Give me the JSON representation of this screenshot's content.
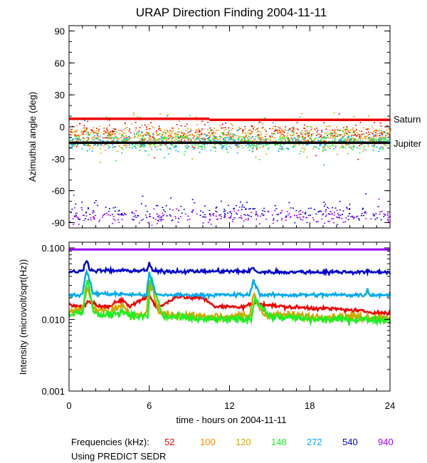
{
  "chart_data": [
    {
      "type": "scatter",
      "title": "URAP Direction Finding  2004-11-11",
      "ylabel": "Azimuthal angle (deg)",
      "xlim": [
        0,
        24
      ],
      "ylim": [
        -95,
        95
      ],
      "yticks": [
        90,
        60,
        30,
        0,
        -30,
        -60,
        -90
      ],
      "reference_lines": [
        {
          "name": "Saturn",
          "color": "#ee0000",
          "segments": [
            {
              "x": [
                0,
                10.5
              ],
              "y": 7.5
            },
            {
              "x": [
                10.5,
                24
              ],
              "y": 6.5
            }
          ]
        },
        {
          "name": "Jupiter",
          "color": "#000000",
          "segments": [
            {
              "x": [
                0,
                24
              ],
              "y": -15
            }
          ]
        }
      ],
      "series": [
        {
          "name": "52 kHz",
          "color": "#ee0000",
          "center": -6,
          "spread": 9
        },
        {
          "name": "100 kHz",
          "color": "#ff8c00",
          "center": -8,
          "spread": 10
        },
        {
          "name": "120 kHz",
          "color": "#ccaa00",
          "center": -10,
          "spread": 9
        },
        {
          "name": "148 kHz",
          "color": "#22ee22",
          "center": -13,
          "spread": 8
        },
        {
          "name": "272 kHz",
          "color": "#00aaee",
          "center": -14,
          "spread": 8
        },
        {
          "name": "540 kHz",
          "color": "#0000cc",
          "center": -80,
          "spread": 8
        },
        {
          "name": "940 kHz",
          "color": "#9900ff",
          "center": -84,
          "spread": 6
        }
      ]
    },
    {
      "type": "line",
      "ylabel": "Intensity (microvolt/sqrt(Hz))",
      "xlabel": "time - hours on 2004-11-11",
      "xlim": [
        0,
        24
      ],
      "xticks": [
        0,
        6,
        12,
        18,
        24
      ],
      "ylim": [
        0.001,
        0.12
      ],
      "yscale": "log",
      "ytick_labels": [
        "0.100",
        "0.010",
        "0.001"
      ],
      "yticks": [
        0.1,
        0.01,
        0.001
      ],
      "series": [
        {
          "name": "940 kHz",
          "color": "#9900ff",
          "values": [
            [
              0,
              0.095
            ],
            [
              24,
              0.095
            ]
          ]
        },
        {
          "name": "540 kHz",
          "color": "#0000cc",
          "values": [
            [
              0,
              0.046
            ],
            [
              1,
              0.047
            ],
            [
              1.3,
              0.07
            ],
            [
              1.6,
              0.048
            ],
            [
              5.8,
              0.048
            ],
            [
              6.0,
              0.06
            ],
            [
              6.3,
              0.047
            ],
            [
              13.5,
              0.047
            ],
            [
              13.7,
              0.053
            ],
            [
              14,
              0.046
            ],
            [
              24,
              0.046
            ]
          ]
        },
        {
          "name": "272 kHz",
          "color": "#00aaee",
          "values": [
            [
              0,
              0.022
            ],
            [
              1.0,
              0.022
            ],
            [
              1.3,
              0.05
            ],
            [
              1.8,
              0.023
            ],
            [
              5.8,
              0.022
            ],
            [
              6.0,
              0.045
            ],
            [
              6.5,
              0.022
            ],
            [
              13.5,
              0.022
            ],
            [
              13.8,
              0.035
            ],
            [
              14.3,
              0.022
            ],
            [
              22.2,
              0.022
            ],
            [
              22.3,
              0.027
            ],
            [
              22.5,
              0.022
            ],
            [
              24,
              0.022
            ]
          ]
        },
        {
          "name": "52 kHz",
          "color": "#ee0000",
          "values": [
            [
              0,
              0.016
            ],
            [
              1,
              0.015
            ],
            [
              1.5,
              0.018
            ],
            [
              2,
              0.016
            ],
            [
              3,
              0.015
            ],
            [
              4,
              0.019
            ],
            [
              4.5,
              0.015
            ],
            [
              6,
              0.022
            ],
            [
              6.6,
              0.014
            ],
            [
              8,
              0.021
            ],
            [
              9,
              0.02
            ],
            [
              10,
              0.02
            ],
            [
              11,
              0.015
            ],
            [
              13,
              0.015
            ],
            [
              14,
              0.017
            ],
            [
              16,
              0.015
            ],
            [
              20,
              0.014
            ],
            [
              22,
              0.013
            ],
            [
              24,
              0.012
            ]
          ]
        },
        {
          "name": "120 kHz",
          "color": "#ccaa00",
          "values": [
            [
              0,
              0.013
            ],
            [
              1,
              0.014
            ],
            [
              1.4,
              0.03
            ],
            [
              1.8,
              0.014
            ],
            [
              3,
              0.013
            ],
            [
              4,
              0.016
            ],
            [
              4.5,
              0.012
            ],
            [
              5.8,
              0.012
            ],
            [
              6.0,
              0.035
            ],
            [
              6.8,
              0.012
            ],
            [
              10,
              0.011
            ],
            [
              13.5,
              0.011
            ],
            [
              13.8,
              0.022
            ],
            [
              14.5,
              0.012
            ],
            [
              18,
              0.011
            ],
            [
              20,
              0.011
            ],
            [
              22,
              0.011
            ],
            [
              24,
              0.0105
            ]
          ]
        },
        {
          "name": "148 kHz",
          "color": "#22ee22",
          "values": [
            [
              0,
              0.012
            ],
            [
              1,
              0.012
            ],
            [
              1.4,
              0.04
            ],
            [
              1.8,
              0.013
            ],
            [
              2.5,
              0.011
            ],
            [
              4,
              0.013
            ],
            [
              5,
              0.011
            ],
            [
              5.9,
              0.011
            ],
            [
              6.1,
              0.04
            ],
            [
              7,
              0.011
            ],
            [
              10,
              0.01
            ],
            [
              13.6,
              0.01
            ],
            [
              13.9,
              0.02
            ],
            [
              15,
              0.011
            ],
            [
              18,
              0.01
            ],
            [
              22,
              0.01
            ],
            [
              24,
              0.0098
            ]
          ]
        }
      ]
    }
  ],
  "labels": {
    "title": "URAP Direction Finding  2004-11-11",
    "saturn": "Saturn",
    "jupiter": "Jupiter",
    "top_ylabel": "Azimuthal angle (deg)",
    "bottom_ylabel": "Intensity (microvolt/sqrt(Hz))",
    "xlabel": "time - hours on 2004-11-11",
    "freq_prefix": "Frequencies (kHz):",
    "source": "Using PREDICT SEDR"
  },
  "frequencies": [
    {
      "label": "52",
      "color": "#ee0000"
    },
    {
      "label": "100",
      "color": "#ff8c00"
    },
    {
      "label": "120",
      "color": "#ccaa00"
    },
    {
      "label": "148",
      "color": "#22ee22"
    },
    {
      "label": "272",
      "color": "#00aaee"
    },
    {
      "label": "540",
      "color": "#0000cc"
    },
    {
      "label": "940",
      "color": "#9900ff"
    }
  ]
}
